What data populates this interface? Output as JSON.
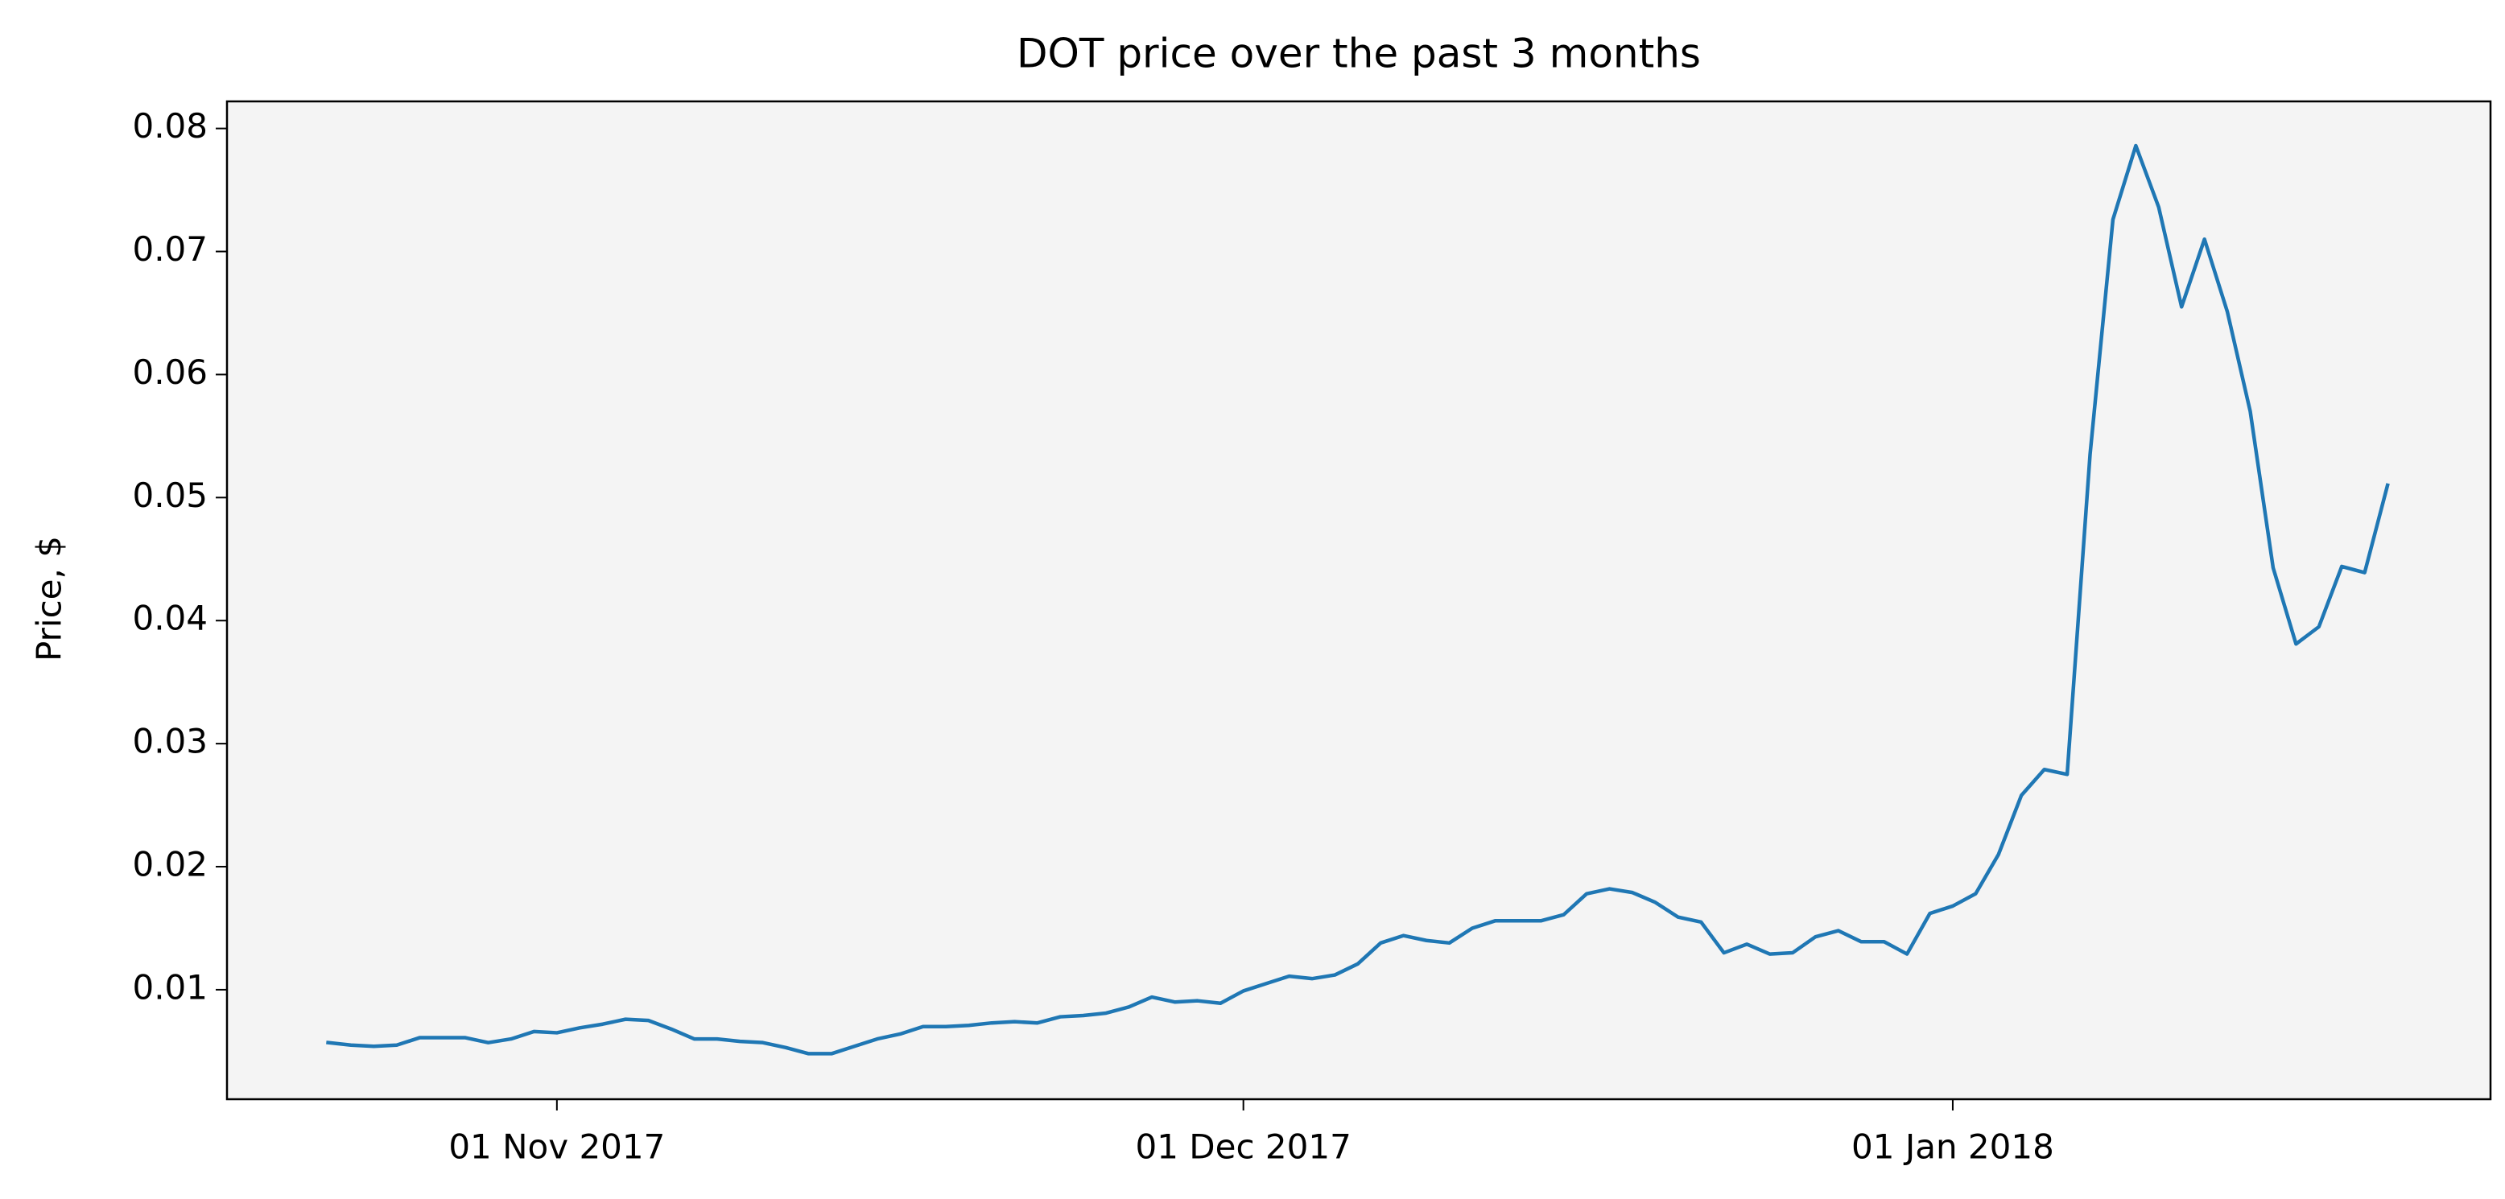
{
  "chart_data": {
    "type": "line",
    "title": "DOT price over the past 3 months",
    "ylabel": "Price, $",
    "x": [
      "2017-10-22",
      "2017-10-23",
      "2017-10-24",
      "2017-10-25",
      "2017-10-26",
      "2017-10-27",
      "2017-10-28",
      "2017-10-29",
      "2017-10-30",
      "2017-10-31",
      "2017-11-01",
      "2017-11-02",
      "2017-11-03",
      "2017-11-04",
      "2017-11-05",
      "2017-11-06",
      "2017-11-07",
      "2017-11-08",
      "2017-11-09",
      "2017-11-10",
      "2017-11-11",
      "2017-11-12",
      "2017-11-13",
      "2017-11-14",
      "2017-11-15",
      "2017-11-16",
      "2017-11-17",
      "2017-11-18",
      "2017-11-19",
      "2017-11-20",
      "2017-11-21",
      "2017-11-22",
      "2017-11-23",
      "2017-11-24",
      "2017-11-25",
      "2017-11-26",
      "2017-11-27",
      "2017-11-28",
      "2017-11-29",
      "2017-11-30",
      "2017-12-01",
      "2017-12-02",
      "2017-12-03",
      "2017-12-04",
      "2017-12-05",
      "2017-12-06",
      "2017-12-07",
      "2017-12-08",
      "2017-12-09",
      "2017-12-10",
      "2017-12-11",
      "2017-12-12",
      "2017-12-13",
      "2017-12-14",
      "2017-12-15",
      "2017-12-16",
      "2017-12-17",
      "2017-12-18",
      "2017-12-19",
      "2017-12-20",
      "2017-12-21",
      "2017-12-22",
      "2017-12-23",
      "2017-12-24",
      "2017-12-25",
      "2017-12-26",
      "2017-12-27",
      "2017-12-28",
      "2017-12-29",
      "2017-12-30",
      "2017-12-31",
      "2018-01-01",
      "2018-01-02",
      "2018-01-03",
      "2018-01-04",
      "2018-01-05",
      "2018-01-06",
      "2018-01-07",
      "2018-01-08",
      "2018-01-09",
      "2018-01-10",
      "2018-01-11",
      "2018-01-12",
      "2018-01-13",
      "2018-01-14",
      "2018-01-15",
      "2018-01-16",
      "2018-01-17",
      "2018-01-18",
      "2018-01-19",
      "2018-01-20"
    ],
    "values": [
      0.0057,
      0.0055,
      0.0054,
      0.0055,
      0.0061,
      0.0061,
      0.0061,
      0.0057,
      0.006,
      0.0066,
      0.0065,
      0.0069,
      0.0072,
      0.0076,
      0.0075,
      0.0068,
      0.006,
      0.006,
      0.0058,
      0.0057,
      0.0053,
      0.0048,
      0.0048,
      0.0054,
      0.006,
      0.0064,
      0.007,
      0.007,
      0.0071,
      0.0073,
      0.0074,
      0.0073,
      0.0078,
      0.0079,
      0.0081,
      0.0086,
      0.0094,
      0.009,
      0.0091,
      0.0089,
      0.0099,
      0.0105,
      0.0111,
      0.0109,
      0.0112,
      0.0121,
      0.0138,
      0.0144,
      0.014,
      0.0138,
      0.015,
      0.0156,
      0.0156,
      0.0156,
      0.0161,
      0.0178,
      0.0182,
      0.0179,
      0.0171,
      0.0159,
      0.0155,
      0.013,
      0.0137,
      0.0129,
      0.013,
      0.0143,
      0.0148,
      0.0139,
      0.0139,
      0.0129,
      0.0162,
      0.0168,
      0.0178,
      0.021,
      0.0258,
      0.0279,
      0.0275,
      0.0535,
      0.0726,
      0.0786,
      0.0736,
      0.0655,
      0.071,
      0.0651,
      0.057,
      0.0443,
      0.0381,
      0.0395,
      0.0444,
      0.0439,
      0.051
    ],
    "color": "#1f77b4",
    "xlim": [
      "2017-10-17T14:00",
      "2018-01-24T12:00"
    ],
    "xticks": [
      {
        "value": "2017-11-01",
        "label": "01 Nov 2017"
      },
      {
        "value": "2017-12-01",
        "label": "01 Dec 2017"
      },
      {
        "value": "2018-01-01",
        "label": "01 Jan 2018"
      }
    ],
    "ylim": [
      0.0011,
      0.0822
    ],
    "yticks": [
      0.01,
      0.02,
      0.03,
      0.04,
      0.05,
      0.06,
      0.07,
      0.08
    ],
    "background": "#f4f4f4",
    "grid": false
  }
}
